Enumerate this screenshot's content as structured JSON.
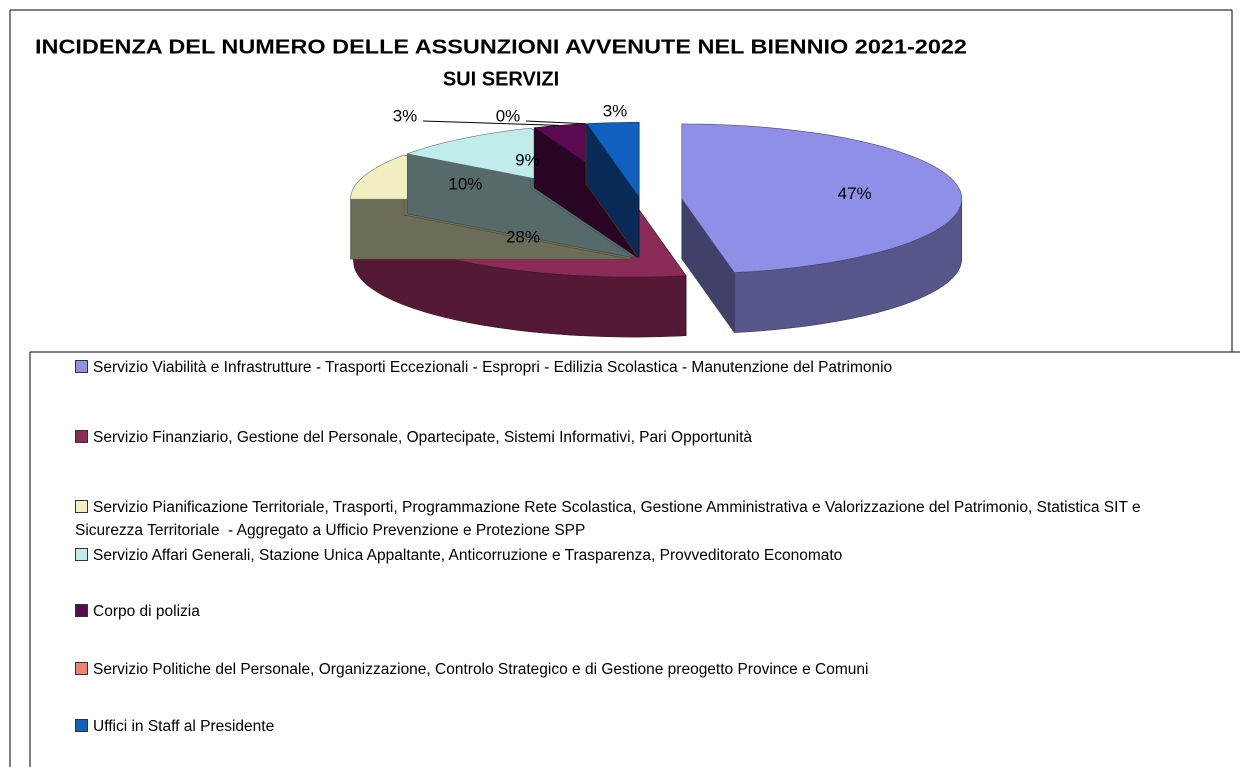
{
  "chart_data": {
    "type": "pie3d",
    "title": [
      "INCIDENZA DEL NUMERO DELLE ASSUNZIONI AVVENUTE NEL BIENNIO 2021-2022",
      "SUI SERVIZI"
    ],
    "categories": [
      "Servizio Viabilità e Infrastrutture - Trasporti Eccezionali - Espropri - Edilizia Scolastica - Manutenzione del Patrimonio",
      "Servizio Finanziario, Gestione del Personale, Opartecipate, Sistemi Informativi, Pari Opportunità",
      "Servizio Pianificazione Territoriale, Trasporti, Programmazione Rete Scolastica, Gestione Amministrativa e Valorizzazione del Patrimonio, Statistica SIT e Sicurezza Territoriale  - Aggregato a Ufficio Prevenzione e Protezione SPP",
      "Servizio Affari Generali, Stazione Unica Appaltante, Anticorruzione e Trasparenza, Provveditorato Economato",
      "Corpo di polizia",
      "Servizio Politiche del Personale, Organizzazione, Controlo Strategico e di Gestione preogetto Province e Comuni",
      "Uffici in Staff al Presidente"
    ],
    "values": [
      47,
      28,
      10,
      9,
      3,
      0,
      3
    ],
    "value_labels": [
      "47%",
      "28%",
      "10%",
      "9%",
      "3%",
      "0%",
      "3%"
    ],
    "colors": [
      "#8f8fe8",
      "#8c2a58",
      "#f2efc0",
      "#c0ecec",
      "#5a0a50",
      "#f08070",
      "#1060c0"
    ],
    "legend": "bottom"
  }
}
